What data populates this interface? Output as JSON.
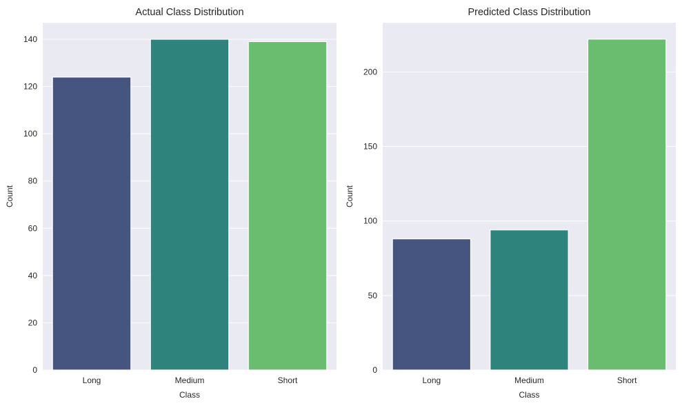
{
  "chart_data": [
    {
      "type": "bar",
      "title": "Actual Class Distribution",
      "xlabel": "Class",
      "ylabel": "Count",
      "categories": [
        "Long",
        "Medium",
        "Short"
      ],
      "values": [
        124,
        140,
        139
      ],
      "ylim": [
        0,
        147
      ],
      "yticks": [
        0,
        20,
        40,
        60,
        80,
        100,
        120,
        140
      ],
      "colors": [
        "#46557f",
        "#2e837c",
        "#6abd6f"
      ],
      "grid": true,
      "legend": "none"
    },
    {
      "type": "bar",
      "title": "Predicted Class Distribution",
      "xlabel": "Class",
      "ylabel": "Count",
      "categories": [
        "Long",
        "Medium",
        "Short"
      ],
      "values": [
        88,
        94,
        222
      ],
      "ylim": [
        0,
        233
      ],
      "yticks": [
        0,
        50,
        100,
        150,
        200
      ],
      "colors": [
        "#46557f",
        "#2e837c",
        "#6abd6f"
      ],
      "grid": true,
      "legend": "none"
    }
  ]
}
